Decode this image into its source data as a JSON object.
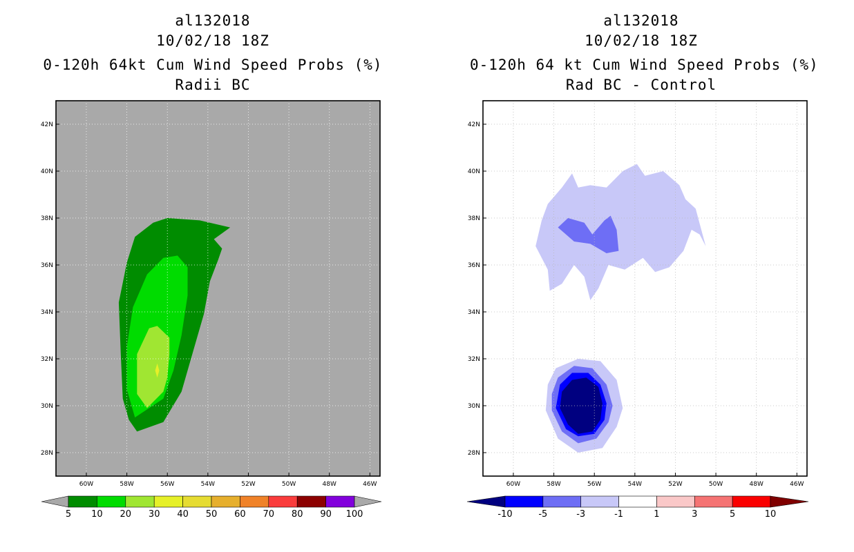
{
  "chart_data": [
    {
      "type": "contour-map",
      "storm": "al132018",
      "date": "10/02/18 18Z",
      "title": "0-120h 64kt Cum Wind Speed Probs (%)",
      "subtitle": "Radii BC",
      "xlim": [
        -61.5,
        -45.5
      ],
      "ylim": [
        27,
        43
      ],
      "xticks": [
        "60W",
        "58W",
        "56W",
        "54W",
        "52W",
        "50W",
        "48W",
        "46W"
      ],
      "xtick_values": [
        -60,
        -58,
        -56,
        -54,
        -52,
        -50,
        -48,
        -46
      ],
      "yticks": [
        "28N",
        "30N",
        "32N",
        "34N",
        "36N",
        "38N",
        "40N",
        "42N"
      ],
      "ytick_values": [
        28,
        30,
        32,
        34,
        36,
        38,
        40,
        42
      ],
      "background": "#a9a9a9",
      "colorbar": {
        "labels": [
          "5",
          "10",
          "20",
          "30",
          "40",
          "50",
          "60",
          "70",
          "80",
          "90",
          "100"
        ],
        "colors": [
          "#008c00",
          "#00dc00",
          "#a0e632",
          "#e6f028",
          "#e6dc32",
          "#e6af2d",
          "#f08228",
          "#fa3c3c",
          "#8c0000",
          "#8200dc"
        ],
        "under_color": "#a9a9a9",
        "over_color": "#a9a9a9"
      },
      "contours": [
        {
          "level": "5-10",
          "color": "#008c00",
          "points": [
            [
              -57.5,
              28.9
            ],
            [
              -56.2,
              29.3
            ],
            [
              -55.3,
              30.6
            ],
            [
              -54.7,
              32.4
            ],
            [
              -54.2,
              33.9
            ],
            [
              -53.9,
              35.3
            ],
            [
              -53.5,
              36.2
            ],
            [
              -53.3,
              36.7
            ],
            [
              -53.7,
              37.1
            ],
            [
              -52.9,
              37.6
            ],
            [
              -54.4,
              37.9
            ],
            [
              -56.0,
              38.0
            ],
            [
              -56.7,
              37.8
            ],
            [
              -57.6,
              37.2
            ],
            [
              -58.0,
              36.1
            ],
            [
              -58.4,
              34.4
            ],
            [
              -58.3,
              32.2
            ],
            [
              -58.2,
              30.3
            ],
            [
              -57.9,
              29.4
            ]
          ]
        },
        {
          "level": "10-20",
          "color": "#00dc00",
          "points": [
            [
              -57.6,
              29.5
            ],
            [
              -56.2,
              30.3
            ],
            [
              -55.7,
              31.5
            ],
            [
              -55.3,
              33.0
            ],
            [
              -55.0,
              34.7
            ],
            [
              -55.0,
              35.9
            ],
            [
              -55.5,
              36.4
            ],
            [
              -56.2,
              36.3
            ],
            [
              -57.0,
              35.6
            ],
            [
              -57.7,
              34.2
            ],
            [
              -58.0,
              32.5
            ],
            [
              -58.0,
              30.7
            ]
          ]
        },
        {
          "level": "20-30",
          "color": "#a0e632",
          "points": [
            [
              -57.0,
              29.9
            ],
            [
              -56.2,
              30.6
            ],
            [
              -56.0,
              31.2
            ],
            [
              -55.9,
              32.2
            ],
            [
              -55.9,
              32.9
            ],
            [
              -56.5,
              33.4
            ],
            [
              -56.9,
              33.3
            ],
            [
              -57.5,
              32.2
            ],
            [
              -57.5,
              30.5
            ]
          ]
        },
        {
          "level": "30-40",
          "color": "#e6f028",
          "points": [
            [
              -56.5,
              31.2
            ],
            [
              -56.4,
              31.5
            ],
            [
              -56.5,
              31.8
            ],
            [
              -56.6,
              31.5
            ]
          ]
        }
      ]
    },
    {
      "type": "contour-map",
      "storm": "al132018",
      "date": "10/02/18 18Z",
      "title": "0-120h 64 kt Cum Wind Speed Probs (%)",
      "subtitle": "Rad BC - Control",
      "xlim": [
        -61.5,
        -45.5
      ],
      "ylim": [
        27,
        43
      ],
      "xticks": [
        "60W",
        "58W",
        "56W",
        "54W",
        "52W",
        "50W",
        "48W",
        "46W"
      ],
      "xtick_values": [
        -60,
        -58,
        -56,
        -54,
        -52,
        -50,
        -48,
        -46
      ],
      "yticks": [
        "28N",
        "30N",
        "32N",
        "34N",
        "36N",
        "38N",
        "40N",
        "42N"
      ],
      "ytick_values": [
        28,
        30,
        32,
        34,
        36,
        38,
        40,
        42
      ],
      "background": "#ffffff",
      "colorbar": {
        "labels": [
          "-10",
          "-5",
          "-3",
          "-1",
          "1",
          "3",
          "5",
          "10"
        ],
        "colors": [
          "#0000ff",
          "#6e6ef5",
          "#c8c8f8",
          "#ffffff",
          "#fac8c8",
          "#f57373",
          "#fa0000"
        ],
        "under_color": "#000080",
        "over_color": "#800000"
      },
      "contours": [
        {
          "level": "-3 to -1",
          "color": "#c8c8f8",
          "points": [
            [
              -58.9,
              36.8
            ],
            [
              -58.3,
              35.8
            ],
            [
              -58.2,
              34.9
            ],
            [
              -57.6,
              35.2
            ],
            [
              -57.0,
              36.0
            ],
            [
              -56.5,
              35.5
            ],
            [
              -56.2,
              34.5
            ],
            [
              -55.8,
              35.0
            ],
            [
              -55.3,
              36.0
            ],
            [
              -54.5,
              35.8
            ],
            [
              -53.6,
              36.3
            ],
            [
              -53.0,
              35.7
            ],
            [
              -52.3,
              35.9
            ],
            [
              -51.6,
              36.6
            ],
            [
              -51.2,
              37.5
            ],
            [
              -50.8,
              37.3
            ],
            [
              -50.5,
              36.8
            ],
            [
              -51.0,
              38.4
            ],
            [
              -51.5,
              38.8
            ],
            [
              -51.8,
              39.4
            ],
            [
              -52.6,
              40.0
            ],
            [
              -53.5,
              39.8
            ],
            [
              -53.9,
              40.3
            ],
            [
              -54.6,
              40.0
            ],
            [
              -55.4,
              39.3
            ],
            [
              -56.2,
              39.4
            ],
            [
              -56.8,
              39.3
            ],
            [
              -57.1,
              39.9
            ],
            [
              -57.6,
              39.3
            ],
            [
              -58.3,
              38.6
            ],
            [
              -58.6,
              37.9
            ]
          ]
        },
        {
          "level": "-3 to -1",
          "color": "#c8c8f8",
          "points": [
            [
              -58.4,
              29.8
            ],
            [
              -57.8,
              28.6
            ],
            [
              -56.8,
              28.0
            ],
            [
              -55.6,
              28.2
            ],
            [
              -54.9,
              29.1
            ],
            [
              -54.6,
              29.9
            ],
            [
              -54.9,
              31.1
            ],
            [
              -55.7,
              31.9
            ],
            [
              -56.8,
              32.0
            ],
            [
              -57.9,
              31.6
            ],
            [
              -58.3,
              30.9
            ]
          ]
        },
        {
          "level": "-5 to -3",
          "color": "#6e6ef5",
          "points": [
            [
              -57.8,
              37.6
            ],
            [
              -57.0,
              37.0
            ],
            [
              -56.2,
              36.9
            ],
            [
              -55.4,
              36.5
            ],
            [
              -54.8,
              36.6
            ],
            [
              -54.9,
              37.5
            ],
            [
              -55.2,
              38.1
            ],
            [
              -55.5,
              37.9
            ],
            [
              -56.1,
              37.3
            ],
            [
              -56.5,
              37.8
            ],
            [
              -57.3,
              38.0
            ]
          ]
        },
        {
          "level": "-5 to -3",
          "color": "#6e6ef5",
          "points": [
            [
              -58.1,
              29.8
            ],
            [
              -57.6,
              28.9
            ],
            [
              -56.8,
              28.4
            ],
            [
              -55.9,
              28.6
            ],
            [
              -55.3,
              29.3
            ],
            [
              -55.1,
              30.0
            ],
            [
              -55.4,
              30.9
            ],
            [
              -56.1,
              31.6
            ],
            [
              -57.0,
              31.7
            ],
            [
              -57.8,
              31.2
            ],
            [
              -58.1,
              30.5
            ]
          ]
        },
        {
          "level": "-10 to -5",
          "color": "#0000ff",
          "points": [
            [
              -57.9,
              29.9
            ],
            [
              -57.4,
              29.0
            ],
            [
              -56.8,
              28.7
            ],
            [
              -56.0,
              28.8
            ],
            [
              -55.5,
              29.4
            ],
            [
              -55.4,
              30.1
            ],
            [
              -55.7,
              30.9
            ],
            [
              -56.3,
              31.4
            ],
            [
              -57.1,
              31.4
            ],
            [
              -57.7,
              30.9
            ]
          ]
        },
        {
          "level": "< -10",
          "color": "#000080",
          "points": [
            [
              -57.7,
              29.9
            ],
            [
              -57.3,
              29.2
            ],
            [
              -56.8,
              28.8
            ],
            [
              -56.1,
              28.9
            ],
            [
              -55.7,
              29.4
            ],
            [
              -55.6,
              30.1
            ],
            [
              -55.8,
              30.8
            ],
            [
              -56.4,
              31.2
            ],
            [
              -57.1,
              31.1
            ],
            [
              -57.6,
              30.6
            ]
          ]
        }
      ]
    }
  ]
}
